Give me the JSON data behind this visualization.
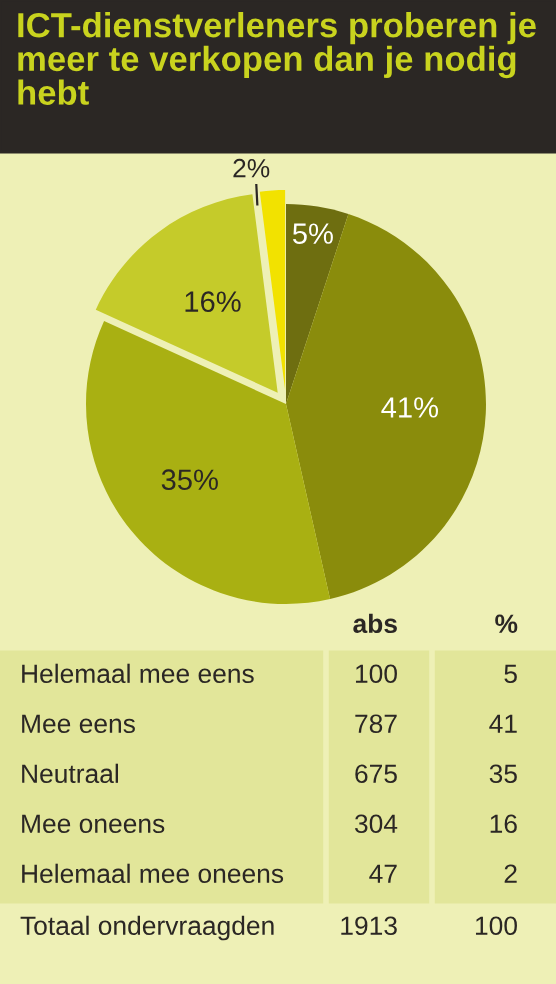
{
  "chart_data": {
    "type": "pie",
    "title": "ICT-dienstverleners proberen je meer te verkopen dan je nodig hebt",
    "categories": [
      null,
      null,
      null,
      null,
      null
    ],
    "values": [
      5,
      41,
      35,
      16,
      2
    ],
    "value_labels": [
      "5%",
      "41%",
      "35%",
      "16%",
      "2%"
    ],
    "colors": [
      "#6e6e10",
      "#8a8c0c",
      "#a9b012",
      "#c5cb2a",
      "#f2e200"
    ],
    "annotations": [
      "abs",
      "%",
      "Helemaal mee eens",
      "100",
      "5",
      "Mee eens",
      "787",
      "41",
      "Neutraal",
      "675",
      "35",
      "Mee oneens",
      "304",
      "16",
      "Helemaal mee oneens",
      "47",
      "2",
      "Totaal ondervraagden",
      "1913",
      "100"
    ],
    "legend": false
  }
}
